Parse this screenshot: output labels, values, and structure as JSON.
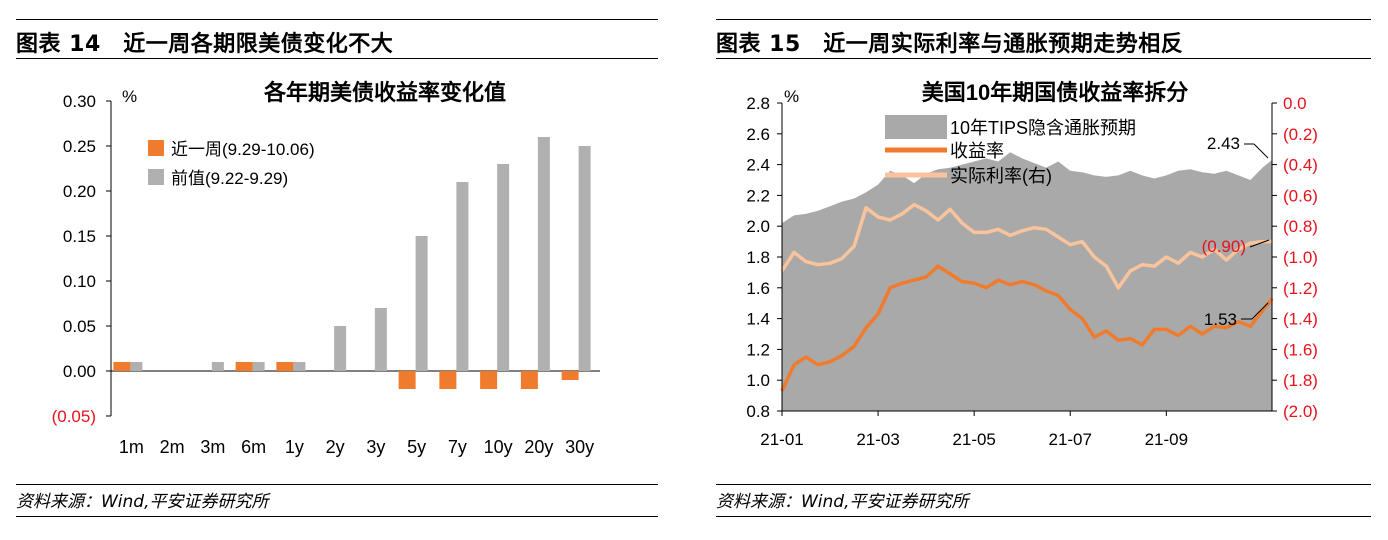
{
  "left": {
    "figure_title": "图表 14　近一周各期限美债变化不大",
    "source": "资料来源：Wind,平安证券研究所"
  },
  "right": {
    "figure_title": "图表 15　近一周实际利率与通胀预期走势相反",
    "source": "资料来源：Wind,平安证券研究所"
  },
  "colors": {
    "orange": "#f07b2d",
    "gray": "#b0b0b0",
    "area": "#a9a9a9",
    "peach": "#f9c49b",
    "red": "#e8121c"
  },
  "chart_data": [
    {
      "type": "bar",
      "title": "各年期美债收益率变化值",
      "ylabel": "%",
      "categories": [
        "1m",
        "2m",
        "3m",
        "6m",
        "1y",
        "2y",
        "3y",
        "5y",
        "7y",
        "10y",
        "20y",
        "30y"
      ],
      "ylim": [
        -0.05,
        0.3
      ],
      "ytick_values": [
        -0.05,
        0.0,
        0.05,
        0.1,
        0.15,
        0.2,
        0.25,
        0.3
      ],
      "ytick_labels": [
        "(0.05)",
        "0.00",
        "0.05",
        "0.10",
        "0.15",
        "0.20",
        "0.25",
        "0.30"
      ],
      "legend_position": "upper-left",
      "series": [
        {
          "name": "近一周(9.29-10.06)",
          "values": [
            0.01,
            0.0,
            0.0,
            0.01,
            0.01,
            0.0,
            0.0,
            -0.02,
            -0.02,
            -0.02,
            -0.02,
            -0.01
          ]
        },
        {
          "name": "前值(9.22-9.29)",
          "values": [
            0.01,
            0.0,
            0.01,
            0.01,
            0.01,
            0.05,
            0.07,
            0.15,
            0.21,
            0.23,
            0.26,
            0.25
          ]
        }
      ]
    },
    {
      "type": "line",
      "title": "美国10年期国债收益率拆分",
      "ylabel": "%",
      "x_tick_labels": [
        "21-01",
        "21-03",
        "21-05",
        "21-07",
        "21-09"
      ],
      "ylim_left": [
        0.8,
        2.8
      ],
      "ylim_right": [
        -2.0,
        0.0
      ],
      "ytick_left_labels": [
        "0.8",
        "1.0",
        "1.2",
        "1.4",
        "1.6",
        "1.8",
        "2.0",
        "2.2",
        "2.4",
        "2.6",
        "2.8"
      ],
      "ytick_right_labels": [
        "(2.0)",
        "(1.8)",
        "(1.6)",
        "(1.4)",
        "(1.2)",
        "(1.0)",
        "(0.8)",
        "(0.6)",
        "(0.4)",
        "(0.2)",
        "0.0"
      ],
      "legend_position": "top",
      "annotations": [
        "2.43",
        "(0.90)",
        "1.53"
      ],
      "x_months": [
        0.0,
        0.25,
        0.5,
        0.75,
        1.0,
        1.25,
        1.5,
        1.75,
        2.0,
        2.25,
        2.5,
        2.75,
        3.0,
        3.25,
        3.5,
        3.75,
        4.0,
        4.25,
        4.5,
        4.75,
        5.0,
        5.25,
        5.5,
        5.75,
        6.0,
        6.25,
        6.5,
        6.75,
        7.0,
        7.25,
        7.5,
        7.75,
        8.0,
        8.25,
        8.5,
        8.75,
        9.0,
        9.25,
        9.5,
        9.75,
        10.0,
        10.2
      ],
      "series": [
        {
          "name": "10年TIPS隐含通胀预期",
          "axis": "left",
          "values": [
            2.02,
            2.07,
            2.08,
            2.1,
            2.13,
            2.16,
            2.18,
            2.22,
            2.27,
            2.36,
            2.33,
            2.28,
            2.34,
            2.37,
            2.38,
            2.4,
            2.42,
            2.44,
            2.42,
            2.48,
            2.44,
            2.41,
            2.38,
            2.42,
            2.36,
            2.35,
            2.33,
            2.32,
            2.33,
            2.36,
            2.33,
            2.31,
            2.33,
            2.36,
            2.37,
            2.35,
            2.34,
            2.36,
            2.33,
            2.3,
            2.38,
            2.43
          ]
        },
        {
          "name": "收益率",
          "axis": "left",
          "values": [
            0.93,
            1.1,
            1.15,
            1.1,
            1.12,
            1.16,
            1.22,
            1.34,
            1.43,
            1.6,
            1.63,
            1.65,
            1.67,
            1.74,
            1.69,
            1.64,
            1.63,
            1.6,
            1.65,
            1.62,
            1.64,
            1.62,
            1.58,
            1.55,
            1.46,
            1.4,
            1.28,
            1.32,
            1.26,
            1.27,
            1.23,
            1.33,
            1.33,
            1.29,
            1.35,
            1.3,
            1.35,
            1.34,
            1.38,
            1.35,
            1.45,
            1.53
          ]
        },
        {
          "name": "实际利率(右)",
          "axis": "right",
          "values": [
            -1.09,
            -0.97,
            -1.03,
            -1.05,
            -1.04,
            -1.01,
            -0.93,
            -0.68,
            -0.74,
            -0.76,
            -0.72,
            -0.66,
            -0.7,
            -0.76,
            -0.69,
            -0.78,
            -0.84,
            -0.84,
            -0.82,
            -0.86,
            -0.83,
            -0.81,
            -0.82,
            -0.87,
            -0.92,
            -0.9,
            -1.0,
            -1.06,
            -1.2,
            -1.09,
            -1.05,
            -1.06,
            -1.0,
            -1.04,
            -0.97,
            -1.0,
            -0.95,
            -1.02,
            -0.95,
            -0.91,
            -0.9,
            -0.9
          ]
        }
      ]
    }
  ]
}
